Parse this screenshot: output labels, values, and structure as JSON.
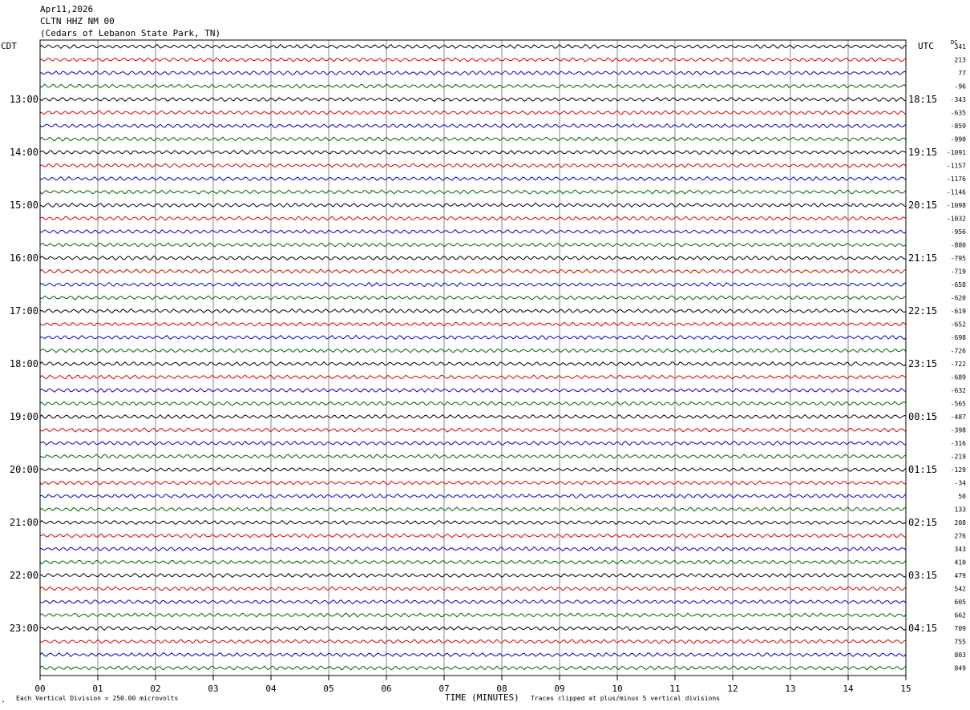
{
  "header": {
    "date": "Apr11,2026",
    "station": "CLTN HHZ NM 00",
    "location": "(Cedars of Lebanon State Park, TN)"
  },
  "left_zone_label": "CDT",
  "right_zone_label": "UTC",
  "dc_label": "DC",
  "footer": {
    "division": "Each Vertical Division =  250.00 microvolts",
    "xlabel": "TIME (MINUTES)",
    "clipping": "Traces clipped at plus/minus 5 vertical divisions",
    "logo_mark": "↗"
  },
  "chart_data": {
    "type": "line",
    "title": "Apr11,2026",
    "xlabel": "TIME (MINUTES)",
    "ylabel": "",
    "xlim": [
      0,
      15
    ],
    "x_ticks": [
      "00",
      "01",
      "02",
      "03",
      "04",
      "05",
      "06",
      "07",
      "08",
      "09",
      "10",
      "11",
      "12",
      "13",
      "14",
      "15"
    ],
    "grid": true,
    "trace_colors": [
      "#000000",
      "#dd0000",
      "#0000cc",
      "#006600"
    ],
    "left_hour_labels": [
      "13:00",
      "14:00",
      "15:00",
      "16:00",
      "17:00",
      "18:00",
      "19:00",
      "20:00",
      "21:00",
      "22:00",
      "23:00"
    ],
    "right_hour_labels": [
      "18:15",
      "19:15",
      "20:15",
      "21:15",
      "22:15",
      "23:15",
      "00:15",
      "01:15",
      "02:15",
      "03:15",
      "04:15"
    ],
    "dc_offsets": [
      "341",
      "213",
      "77",
      "-96",
      "-343",
      "-635",
      "-859",
      "-990",
      "-1091",
      "-1157",
      "-1176",
      "-1146",
      "-1098",
      "-1032",
      "-956",
      "-880",
      "-795",
      "-719",
      "-658",
      "-620",
      "-619",
      "-652",
      "-698",
      "-726",
      "-722",
      "-689",
      "-632",
      "-565",
      "-487",
      "-398",
      "-316",
      "-219",
      "-129",
      "-34",
      "50",
      "133",
      "208",
      "276",
      "343",
      "410",
      "479",
      "542",
      "605",
      "662",
      "709",
      "755",
      "803",
      "849"
    ],
    "trace_count": 48
  }
}
